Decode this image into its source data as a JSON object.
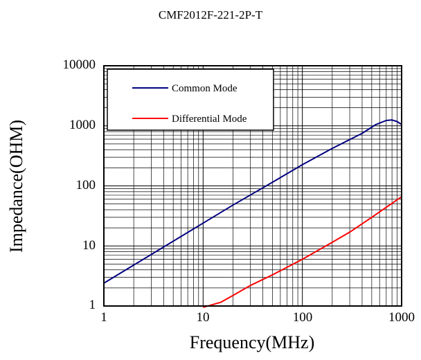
{
  "chart_data": {
    "type": "line",
    "title": "CMF2012F-221-2P-T",
    "xlabel": "Frequency(MHz)",
    "ylabel": "Impedance(OHM)",
    "xscale": "log",
    "yscale": "log",
    "xlim": [
      1,
      1000
    ],
    "ylim": [
      1,
      10000
    ],
    "x_tick_labels": [
      "1",
      "10",
      "100",
      "1000"
    ],
    "y_tick_labels": [
      "1",
      "10",
      "100",
      "1000",
      "10000"
    ],
    "grid": true,
    "legend_position": "top-left",
    "series": [
      {
        "name": "Common Mode",
        "color": "#000080",
        "x": [
          1,
          2,
          5,
          10,
          20,
          50,
          100,
          200,
          400,
          550,
          700,
          800,
          900,
          1000
        ],
        "y": [
          2.4,
          4.8,
          12,
          24,
          48,
          115,
          225,
          420,
          750,
          1050,
          1230,
          1250,
          1180,
          1050
        ]
      },
      {
        "name": "Differential Mode",
        "color": "#ff0000",
        "x": [
          10,
          15,
          20,
          30,
          50,
          100,
          200,
          300,
          500,
          700,
          1000
        ],
        "y": [
          0.95,
          1.15,
          1.5,
          2.2,
          3.3,
          6,
          11.5,
          17,
          30,
          44,
          66
        ]
      }
    ]
  }
}
